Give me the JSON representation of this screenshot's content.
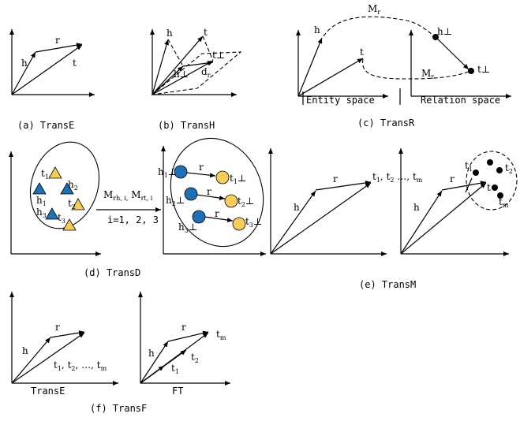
{
  "panels": {
    "a": {
      "caption": "(a) TransE",
      "h": "h",
      "r": "r",
      "t": "t"
    },
    "b": {
      "caption": "(b) TransH",
      "h": "h",
      "t": "t",
      "t_perp": "t⊥",
      "h_perp": "h⊥",
      "d": "d",
      "d_sub": "r"
    },
    "c": {
      "caption": "(c) TransR",
      "h": "h",
      "t": "t",
      "h_perp": "h⊥",
      "t_perp": "t⊥",
      "M": "M",
      "M_sub": "r",
      "entity_space": "Entity space",
      "relation_space": "Relation space"
    },
    "d": {
      "caption": "(d) TransD",
      "t": "t",
      "h": "h",
      "n1": "1",
      "n2": "2",
      "n3": "3",
      "m1": "M",
      "m1_sub": "rh, i,",
      "m2": "M",
      "m2_sub": "rt, i",
      "i_range": "i=1, 2, 3",
      "r": "r",
      "h1p": "h1⊥",
      "h2p": "h2⊥",
      "h3p": "h3⊥",
      "t1p": "t1⊥",
      "t2p": "t2⊥",
      "t3p": "t3⊥"
    },
    "e": {
      "caption": "(e) TransM",
      "h": "h",
      "r": "r",
      "t": "t",
      "tm_list": "t1, t2, …, tm",
      "t1": "t",
      "t1_sub": "1",
      "t2": "t",
      "t2_sub": "2",
      "tm": "t",
      "tm_sub": "m",
      "tc": "t"
    },
    "f": {
      "caption": "(f) TransF",
      "h": "h",
      "r": "r",
      "left_title": "TransE",
      "right_title": "FT",
      "list": "t1, t2, …, tm",
      "t1": "t",
      "t1_sub": "1",
      "t2": "t",
      "t2_sub": "2",
      "tm": "t",
      "tm_sub": "m"
    }
  },
  "colors": {
    "blue": "#1f6fb4",
    "yellow": "#f5cd5a",
    "black": "#000000"
  }
}
